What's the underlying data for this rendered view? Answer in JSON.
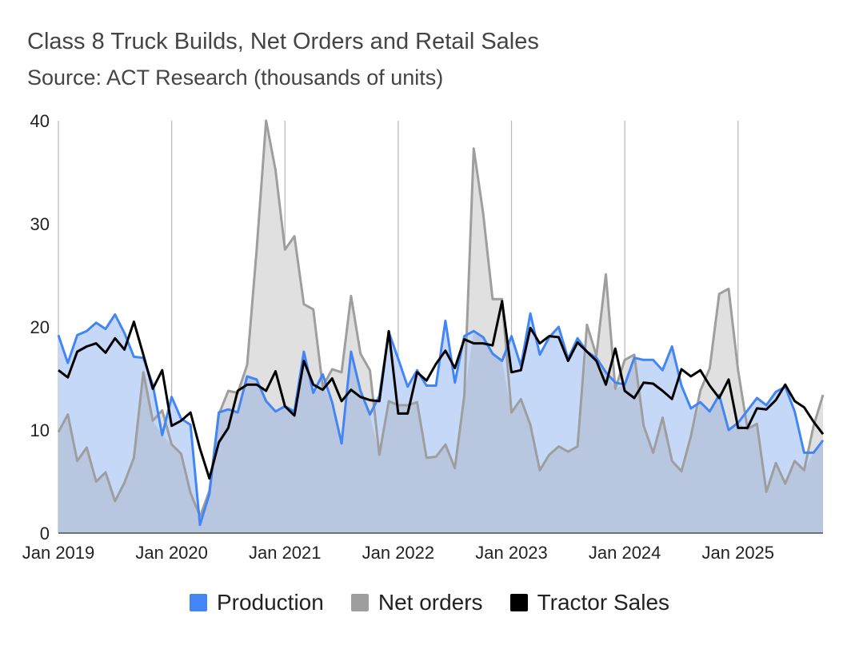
{
  "header": {
    "title": "Class 8 Truck Builds, Net Orders and Retail Sales",
    "subtitle": "Source: ACT Research (thousands of units)"
  },
  "colors": {
    "production": "#4285f4",
    "production_fill": "#c6d8f8",
    "net_orders": "#9e9e9e",
    "net_orders_fill": "#e0e0e0",
    "tractor_sales": "#000000",
    "overlap_fill": "#b8c6df",
    "grid": "#b7b7b7"
  },
  "chart_data": {
    "type": "area",
    "title": "Class 8 Truck Builds, Net Orders and Retail Sales",
    "subtitle": "Source: ACT Research (thousands of units)",
    "xlabel": "",
    "ylabel": "",
    "ylim": [
      0,
      40
    ],
    "yticks": [
      "0",
      "10",
      "20",
      "30",
      "40"
    ],
    "xtick_labels": [
      "Jan 2019",
      "Jan 2020",
      "Jan 2021",
      "Jan 2022",
      "Jan 2023",
      "Jan 2024",
      "Jan 2025"
    ],
    "xtick_indices": [
      0,
      12,
      24,
      36,
      48,
      60,
      72
    ],
    "vertical_gridlines": true,
    "legend_position": "bottom",
    "series": [
      {
        "name": "Production",
        "style": "area",
        "values": [
          19.2,
          16.5,
          19.2,
          19.6,
          20.4,
          19.8,
          21.2,
          19.4,
          17.1,
          17.0,
          14.4,
          9.5,
          13.2,
          11.1,
          10.5,
          0.8,
          3.8,
          11.7,
          12.0,
          11.7,
          15.2,
          14.9,
          12.8,
          11.8,
          12.3,
          11.8,
          17.6,
          13.6,
          15.4,
          12.7,
          8.7,
          17.6,
          13.8,
          11.5,
          13.3,
          19.5,
          16.9,
          14.2,
          15.8,
          14.3,
          14.3,
          20.6,
          14.6,
          19.1,
          19.6,
          19.0,
          17.4,
          16.7,
          19.1,
          16.2,
          21.3,
          17.3,
          19.0,
          20.0,
          16.9,
          18.9,
          17.6,
          17.0,
          15.6,
          14.6,
          14.4,
          17.0,
          16.8,
          16.8,
          15.8,
          18.1,
          14.3,
          12.1,
          12.7,
          11.8,
          13.4,
          10.0,
          10.7,
          11.9,
          13.1,
          12.4,
          13.7,
          14.2,
          11.8,
          7.8,
          7.8,
          9.0
        ]
      },
      {
        "name": "Net orders",
        "style": "area",
        "values": [
          9.8,
          11.5,
          7.0,
          8.3,
          5.0,
          5.9,
          3.1,
          4.9,
          7.3,
          15.6,
          10.9,
          11.9,
          8.6,
          7.7,
          3.9,
          1.6,
          4.1,
          11.5,
          13.8,
          13.6,
          16.3,
          27.5,
          40.0,
          35.2,
          27.5,
          28.8,
          22.2,
          21.7,
          14.2,
          15.9,
          15.6,
          23.0,
          17.4,
          15.8,
          7.6,
          12.8,
          12.4,
          12.4,
          12.7,
          7.3,
          7.4,
          8.6,
          6.3,
          13.3,
          37.3,
          31.0,
          22.7,
          22.7,
          11.7,
          13.0,
          10.5,
          6.1,
          7.6,
          8.4,
          7.9,
          8.4,
          20.2,
          17.2,
          25.1,
          14.0,
          16.8,
          17.3,
          10.4,
          7.8,
          11.2,
          7.0,
          6.0,
          9.4,
          13.8,
          16.0,
          23.2,
          23.7,
          15.8,
          10.1,
          10.6,
          4.0,
          6.8,
          4.8,
          7.0,
          6.1,
          10.4,
          13.4
        ]
      },
      {
        "name": "Tractor Sales",
        "style": "line",
        "values": [
          15.8,
          15.1,
          17.6,
          18.1,
          18.4,
          17.5,
          18.9,
          17.8,
          20.5,
          17.3,
          14.0,
          15.8,
          10.4,
          10.9,
          11.7,
          8.2,
          5.3,
          8.8,
          10.2,
          13.8,
          14.4,
          14.4,
          13.8,
          15.7,
          12.3,
          11.4,
          16.7,
          14.4,
          13.9,
          15.0,
          12.8,
          13.9,
          13.2,
          12.9,
          12.8,
          19.6,
          11.6,
          11.6,
          15.6,
          14.8,
          16.4,
          17.7,
          16.0,
          18.8,
          18.4,
          18.4,
          18.2,
          22.5,
          15.6,
          15.8,
          19.9,
          18.4,
          19.1,
          19.0,
          16.7,
          18.5,
          17.6,
          16.7,
          14.4,
          17.9,
          13.8,
          13.1,
          14.6,
          14.5,
          13.8,
          13.0,
          15.9,
          15.2,
          15.8,
          14.3,
          13.1,
          14.9,
          10.2,
          10.2,
          12.1,
          12.0,
          12.9,
          14.4,
          12.8,
          12.2,
          10.8,
          9.6
        ]
      }
    ]
  }
}
